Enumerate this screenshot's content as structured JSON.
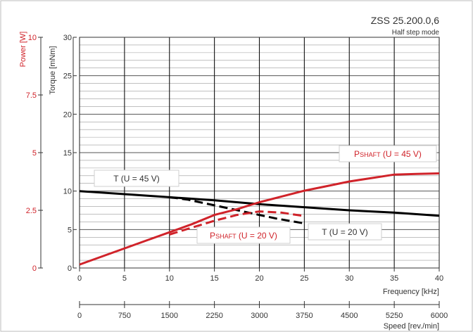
{
  "chart_data": {
    "type": "line",
    "title": "ZSS 25.200.0,6",
    "subtitle": "Half step mode",
    "x_axis": {
      "label": "Frequency [kHz]",
      "range": [
        0,
        40
      ],
      "ticks": [
        0,
        5,
        10,
        15,
        20,
        25,
        30,
        35,
        40
      ]
    },
    "speed_axis": {
      "label": "Speed [rev./min]",
      "range": [
        0,
        6000
      ],
      "ticks": [
        0,
        750,
        1500,
        2250,
        3000,
        3750,
        4500,
        5250,
        6000
      ]
    },
    "torque_axis": {
      "label": "Torque [mNm]",
      "range": [
        0,
        30
      ],
      "ticks": [
        0,
        5,
        10,
        15,
        20,
        25,
        30
      ]
    },
    "power_axis": {
      "label": "Power [W]",
      "range": [
        0,
        10
      ],
      "ticks": [
        "0",
        "2.5",
        "5",
        "7.5",
        "10"
      ]
    },
    "grid": true,
    "series": [
      {
        "name": "T (U = 45 V)",
        "axis": "torque",
        "style": "solid",
        "color": "#000000",
        "x": [
          0,
          5,
          10,
          15,
          20,
          25,
          30,
          35,
          40
        ],
        "y": [
          10.0,
          9.6,
          9.2,
          8.8,
          8.3,
          7.9,
          7.5,
          7.2,
          6.8
        ]
      },
      {
        "name": "T (U = 20 V)",
        "axis": "torque",
        "style": "dashed",
        "color": "#000000",
        "x": [
          10,
          12,
          14,
          16,
          18,
          20,
          22,
          24,
          25
        ],
        "y": [
          9.2,
          8.9,
          8.4,
          7.9,
          7.4,
          6.9,
          6.4,
          6.0,
          5.8
        ]
      },
      {
        "name": "PSHAFT (U = 45 V)",
        "axis": "power",
        "style": "solid",
        "color": "#d0232a",
        "x": [
          0,
          2.5,
          5,
          7.5,
          10,
          12.5,
          15,
          17.5,
          20,
          22.5,
          25,
          27.5,
          30,
          32.5,
          35,
          37.5,
          40
        ],
        "y": [
          0.15,
          0.5,
          0.85,
          1.2,
          1.55,
          1.9,
          2.3,
          2.55,
          2.85,
          3.1,
          3.35,
          3.55,
          3.75,
          3.9,
          4.05,
          4.08,
          4.1
        ]
      },
      {
        "name": "PSHAFT (U = 20 V)",
        "axis": "power",
        "style": "dashed",
        "color": "#d0232a",
        "x": [
          10,
          12.5,
          15,
          17.5,
          20,
          22.5,
          25
        ],
        "y": [
          1.45,
          1.75,
          2.05,
          2.3,
          2.45,
          2.4,
          2.25
        ]
      }
    ],
    "annotations": [
      {
        "main": "P",
        "sub": "SHAFT",
        "rest": " (U = 45 V)",
        "color": "red"
      },
      {
        "main": "T",
        "sub": "",
        "rest": " (U = 45 V)",
        "color": "black"
      },
      {
        "main": "P",
        "sub": "SHAFT",
        "rest": " (U = 20 V)",
        "color": "red"
      },
      {
        "main": "T",
        "sub": "",
        "rest": " (U = 20 V)",
        "color": "black"
      }
    ]
  }
}
